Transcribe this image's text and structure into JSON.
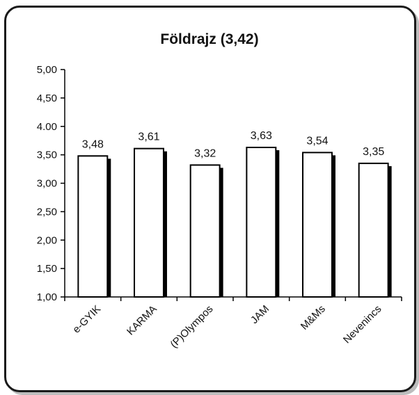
{
  "chart_data": {
    "type": "bar",
    "title": "Földrajz (3,42)",
    "categories": [
      "e-GYIK",
      "KARMA",
      "(P)Olympos",
      "JAM",
      "M&Ms",
      "Nevenincs"
    ],
    "values": [
      3.48,
      3.61,
      3.32,
      3.63,
      3.54,
      3.35
    ],
    "data_labels": [
      "3,48",
      "3,61",
      "3,32",
      "3,63",
      "3,54",
      "3,35"
    ],
    "ylim": [
      1.0,
      5.0
    ],
    "y_ticks": [
      1.0,
      1.5,
      2.0,
      2.5,
      3.0,
      3.5,
      4.0,
      4.5,
      5.0
    ],
    "y_tick_labels": [
      "1,00",
      "1,50",
      "2,00",
      "2,50",
      "3,00",
      "3,50",
      "4.00",
      "4,50",
      "5,00"
    ],
    "xlabel": "",
    "ylabel": "",
    "grid": false,
    "legend": "none",
    "bar_fill": "#ffffff",
    "bar_stroke": "#000000"
  }
}
